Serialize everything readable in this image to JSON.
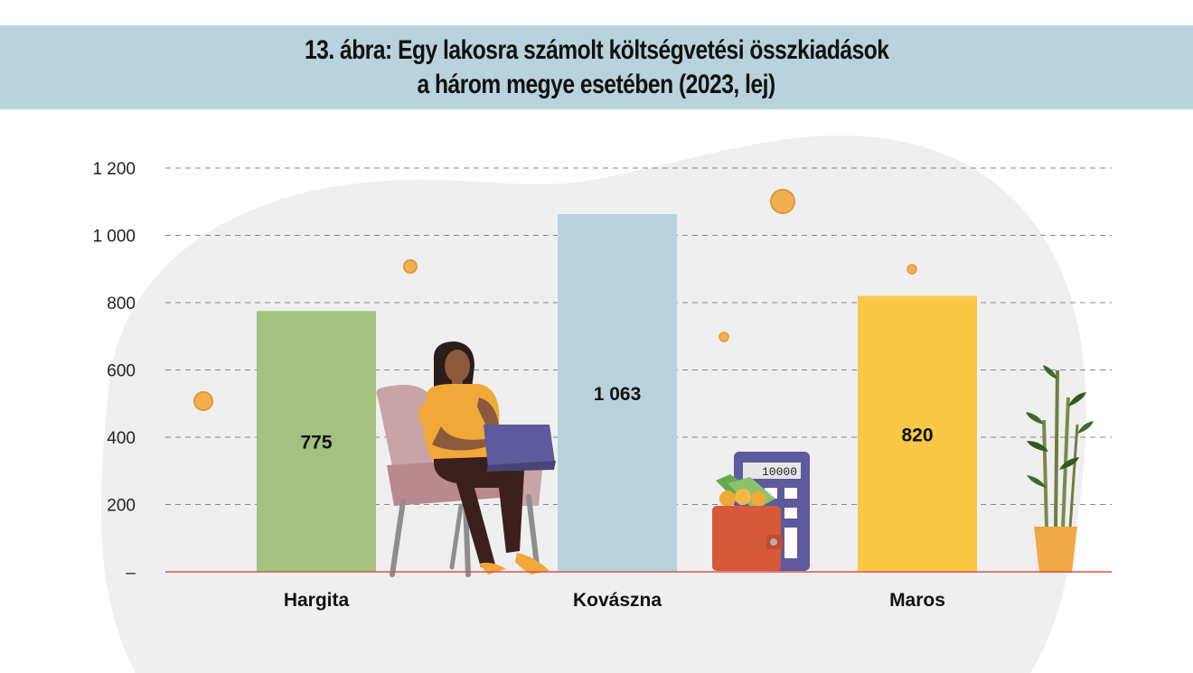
{
  "title_lines": [
    "13. ábra: Egy lakosra számolt költségvetési összkiadások",
    "a három megye esetében (2023, lej)"
  ],
  "colors": {
    "title_band": "#b9d3de",
    "background_blob": "#efefef",
    "baseline": "#d9534f",
    "grid": "#888888"
  },
  "illustration": {
    "calculator_display": "10000"
  },
  "chart_data": {
    "type": "bar",
    "title": "13. ábra: Egy lakosra számolt költségvetési összkiadások a három megye esetében (2023, lej)",
    "categories": [
      "Hargita",
      "Kovászna",
      "Maros"
    ],
    "values": [
      775,
      1063,
      820
    ],
    "value_labels": [
      "775",
      "1 063",
      "820"
    ],
    "bar_colors": [
      "#a3c17f",
      "#b9d3de",
      "#f8c846"
    ],
    "ylim": [
      0,
      1200
    ],
    "y_ticks": [
      0,
      200,
      400,
      600,
      800,
      1000,
      1200
    ],
    "y_tick_labels": [
      "–",
      "200",
      "400",
      "600",
      "800",
      "1 000",
      "1 200"
    ],
    "grid": "dashed horizontal",
    "xlabel": "",
    "ylabel": ""
  }
}
